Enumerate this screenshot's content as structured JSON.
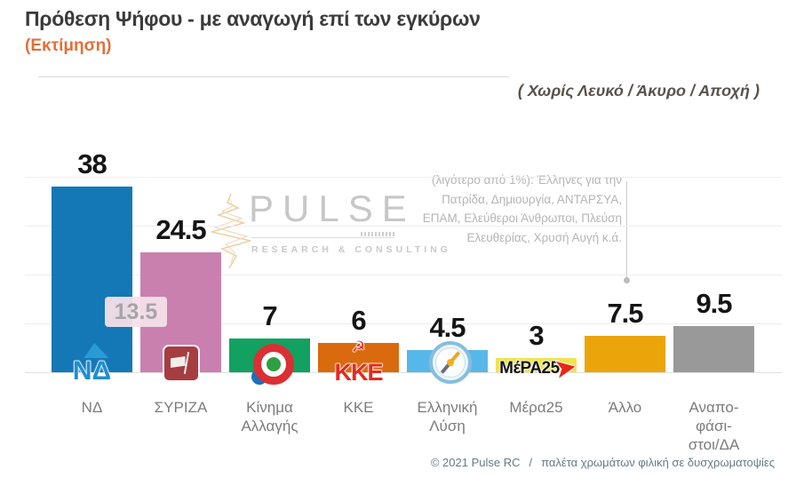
{
  "header": {
    "title": "Πρόθεση Ψήφου - με αναγωγή επί των εγκύρων",
    "subtitle": "(Εκτίμηση)",
    "note": "( Χωρίς Λευκό / Άκυρο / Αποχή )"
  },
  "watermark": {
    "name": "PULSE",
    "tagline": "RESEARCH & CONSULTING"
  },
  "annotation": {
    "lines": [
      "(λιγότερο από 1%): Έλληνες για την",
      "Πατρίδα, Δημιουργία, ΑΝΤΑΡΣΥΑ,",
      "ΕΠΑΜ, Ελεύθεροι Άνθρωποι, Πλεύση",
      "Ελευθερίας, Χρυσή Αυγή κ.ά."
    ]
  },
  "difference_badge": {
    "value": "13.5"
  },
  "chart_data": {
    "type": "bar",
    "title": "Πρόθεση Ψήφου - με αναγωγή επί των εγκύρων (Εκτίμηση)",
    "categories": [
      "ΝΔ",
      "ΣΥΡΙΖΑ",
      "Κίνημα Αλλαγής",
      "ΚΚΕ",
      "Ελληνική Λύση",
      "Μέρα25",
      "Άλλο",
      "Αναποφάσιστοι/ΔΑ"
    ],
    "values": [
      38,
      24.5,
      7,
      6,
      4.5,
      3,
      7.5,
      9.5
    ],
    "colors": [
      "#1478b6",
      "#ca80ae",
      "#12a161",
      "#d96a0e",
      "#58b7e9",
      "#efe44c",
      "#eba50a",
      "#999999"
    ],
    "keys": [
      "nd",
      "syriza",
      "kinima-allagis",
      "kke",
      "elliniki-lysi",
      "mera25",
      "allo",
      "anapofasistoi-da"
    ],
    "label_lines": [
      [
        "ΝΔ"
      ],
      [
        "ΣΥΡΙΖΑ"
      ],
      [
        "Κίνημα",
        "Αλλαγής"
      ],
      [
        "ΚΚΕ"
      ],
      [
        "Ελληνική",
        "Λύση"
      ],
      [
        "Μέρα25"
      ],
      [
        "Άλλο"
      ],
      [
        "Αναπο-",
        "φάσι-",
        "στοι/ΔΑ"
      ]
    ],
    "logos": [
      "nd",
      "syriza",
      "kinal",
      "kke",
      "compass",
      "mera25",
      null,
      null
    ],
    "logo_texts": {
      "nd": "ΝΔ",
      "kke": "ΚΚΕ",
      "kke_symbol": "☭",
      "mera25": "ΜέΡΑ25"
    },
    "difference_nd_vs_syriza": 13.5,
    "ylim": [
      0,
      40
    ],
    "gridlines": [
      10,
      20,
      30,
      40
    ],
    "legend": "none",
    "grid": "horizontal"
  },
  "icons": {
    "mera25_arrow": "➤"
  },
  "footer": {
    "copyright": "© 2021 Pulse RC",
    "separator": "/",
    "palette_note": "παλέτα χρωμάτων φιλική σε δυσχρωματοψίες"
  }
}
